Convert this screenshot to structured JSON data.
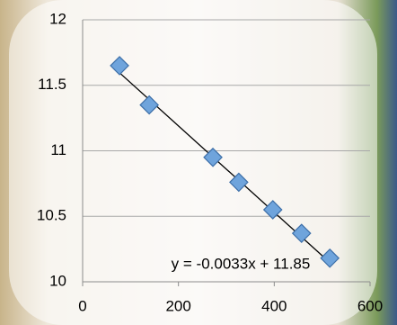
{
  "chart_data": {
    "type": "scatter",
    "x": [
      77,
      139,
      272,
      326,
      397,
      457,
      516
    ],
    "values": [
      11.65,
      11.35,
      10.95,
      10.76,
      10.55,
      10.37,
      10.18
    ],
    "color": "#6fa4dc",
    "xlim": [
      0,
      600
    ],
    "xticks": [
      0,
      200,
      400,
      600
    ],
    "ylim": [
      10,
      12
    ],
    "yticks": [
      10,
      10.5,
      11,
      11.5,
      12
    ],
    "grid": true,
    "trendline": {
      "slope": -0.0033,
      "intercept": 11.85,
      "label": "y = -0.0033x + 11.85"
    }
  }
}
